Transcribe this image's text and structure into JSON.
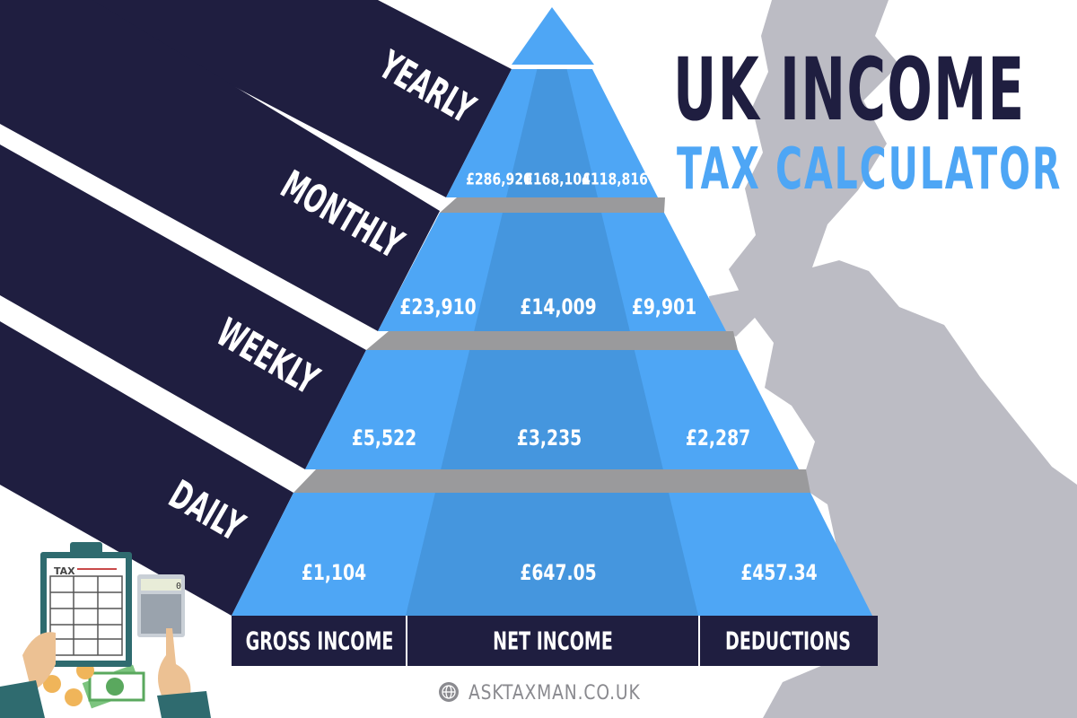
{
  "title": {
    "line1": "UK INCOME",
    "line2": "TAX CALCULATOR"
  },
  "rows": [
    {
      "period": "YEARLY",
      "gross": "£286,920",
      "net": "£168,104",
      "deductions": "£118,816"
    },
    {
      "period": "MONTHLY",
      "gross": "£23,910",
      "net": "£14,009",
      "deductions": "£9,901"
    },
    {
      "period": "WEEKLY",
      "gross": "£5,522",
      "net": "£3,235",
      "deductions": "£2,287"
    },
    {
      "period": "DAILY",
      "gross": "£1,104",
      "net": "£647.05",
      "deductions": "£457.34"
    }
  ],
  "columns": [
    "GROSS INCOME",
    "NET INCOME",
    "DEDUCTIONS"
  ],
  "illustration": {
    "clipboard_label": "TAX",
    "calculator_display": "0"
  },
  "footer": {
    "website": "ASKTAXMAN.CO.UK",
    "icon": "globe-icon"
  },
  "colors": {
    "navy": "#1f1e40",
    "blue": "#4ea6f5",
    "blue_dark": "#4596de",
    "slab": "#9a9a9c",
    "map": "#bcbcc4"
  }
}
